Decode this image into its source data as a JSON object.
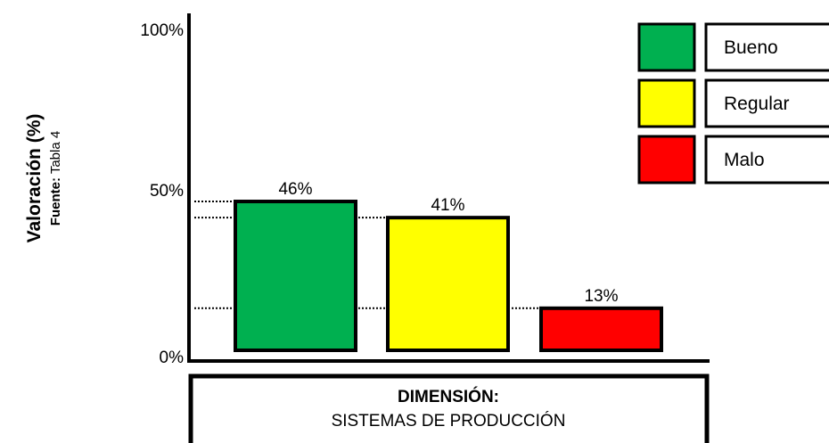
{
  "chart_data": {
    "type": "bar",
    "categories": [
      "Bueno",
      "Regular",
      "Malo"
    ],
    "values": [
      46,
      41,
      13
    ],
    "data_labels": [
      "46%",
      "41%",
      "13%"
    ],
    "colors": [
      "#00b050",
      "#ffff00",
      "#ff0000"
    ],
    "ylabel": "Valoración (%)",
    "source_label": "Fuente:",
    "source_value": "Tabla 4",
    "yticks": [
      "0%",
      "50%",
      "100%"
    ],
    "ylim": [
      0,
      100
    ],
    "grid": false,
    "legend": {
      "placement": "top-right",
      "entries": [
        "Bueno",
        "Regular",
        "Malo"
      ]
    },
    "xlabel_title": "DIMENSIÓN:",
    "xlabel_subtitle": "SISTEMAS DE PRODUCCIÓN"
  }
}
